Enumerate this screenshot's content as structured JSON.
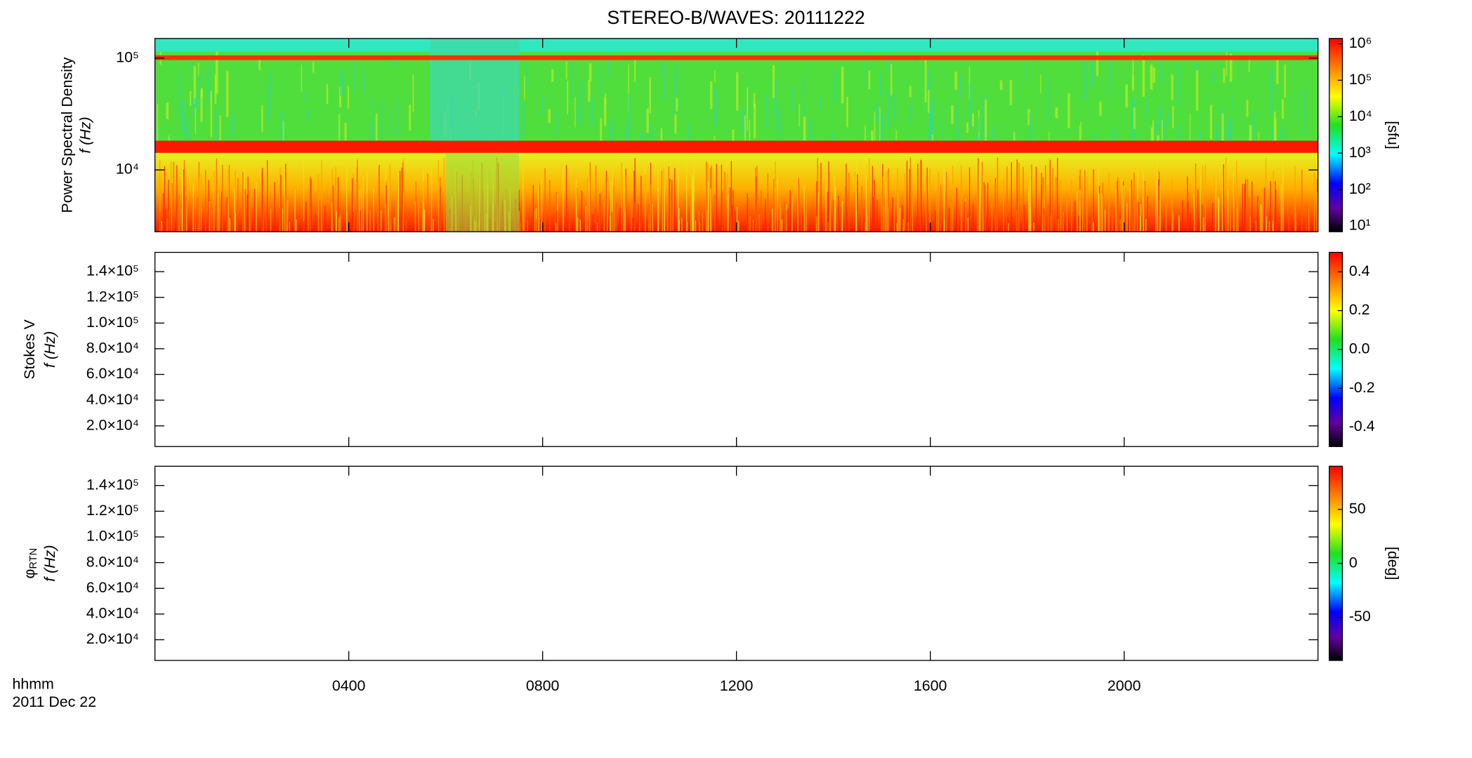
{
  "chart_data": [
    {
      "type": "heatmap",
      "title": "STEREO-B/WAVES: 20111222",
      "ylabel": "Power Spectral Density",
      "yunit": "f (Hz)",
      "ylog": true,
      "ylim": [
        2800,
        150000
      ],
      "yticks": [
        {
          "value": 10000,
          "label": "10⁴"
        },
        {
          "value": 100000,
          "label": "10⁵"
        }
      ],
      "colorbar": {
        "log": true,
        "lim": [
          7,
          1400000
        ],
        "label": "[sfu]",
        "ticks": [
          {
            "value": 10,
            "label": "10¹"
          },
          {
            "value": 100,
            "label": "10²"
          },
          {
            "value": 1000,
            "label": "10³"
          },
          {
            "value": 10000,
            "label": "10⁴"
          },
          {
            "value": 100000,
            "label": "10⁵"
          },
          {
            "value": 1000000,
            "label": "10⁶"
          }
        ]
      }
    },
    {
      "type": "heatmap",
      "ylabel": "Stokes V",
      "yunit": "f (Hz)",
      "ylim": [
        3900,
        155000
      ],
      "yticks": [
        {
          "value": 20000,
          "label": "2.0×10⁴"
        },
        {
          "value": 40000,
          "label": "4.0×10⁴"
        },
        {
          "value": 60000,
          "label": "6.0×10⁴"
        },
        {
          "value": 80000,
          "label": "8.0×10⁴"
        },
        {
          "value": 100000,
          "label": "1.0×10⁵"
        },
        {
          "value": 120000,
          "label": "1.2×10⁵"
        },
        {
          "value": 140000,
          "label": "1.4×10⁵"
        }
      ],
      "colorbar": {
        "lim": [
          -0.5,
          0.5
        ],
        "ticks": [
          -0.4,
          -0.2,
          {
            "value": 0,
            "label": "0.0"
          },
          0.2,
          0.4
        ]
      }
    },
    {
      "type": "heatmap",
      "ylabel": "φ",
      "ylabel_subscript": "RTN",
      "yunit": "f (Hz)",
      "ylim": [
        3900,
        155000
      ],
      "yticks": [
        {
          "value": 20000,
          "label": "2.0×10⁴"
        },
        {
          "value": 40000,
          "label": "4.0×10⁴"
        },
        {
          "value": 60000,
          "label": "6.0×10⁴"
        },
        {
          "value": 80000,
          "label": "8.0×10⁴"
        },
        {
          "value": 100000,
          "label": "1.0×10⁵"
        },
        {
          "value": 120000,
          "label": "1.2×10⁵"
        },
        {
          "value": 140000,
          "label": "1.4×10⁵"
        }
      ],
      "colorbar": {
        "lim": [
          -90,
          90
        ],
        "label": "[deg]",
        "ticks": [
          -50,
          0,
          50
        ]
      },
      "xlim": [
        0,
        24
      ],
      "xlabel": "hhmm",
      "date": "2011 Dec 22",
      "xticks": [
        {
          "value": 4,
          "label": "0400"
        },
        {
          "value": 8,
          "label": "0800"
        },
        {
          "value": 12,
          "label": "1200"
        },
        {
          "value": 16,
          "label": "1600"
        },
        {
          "value": 20,
          "label": "2000"
        }
      ]
    }
  ]
}
